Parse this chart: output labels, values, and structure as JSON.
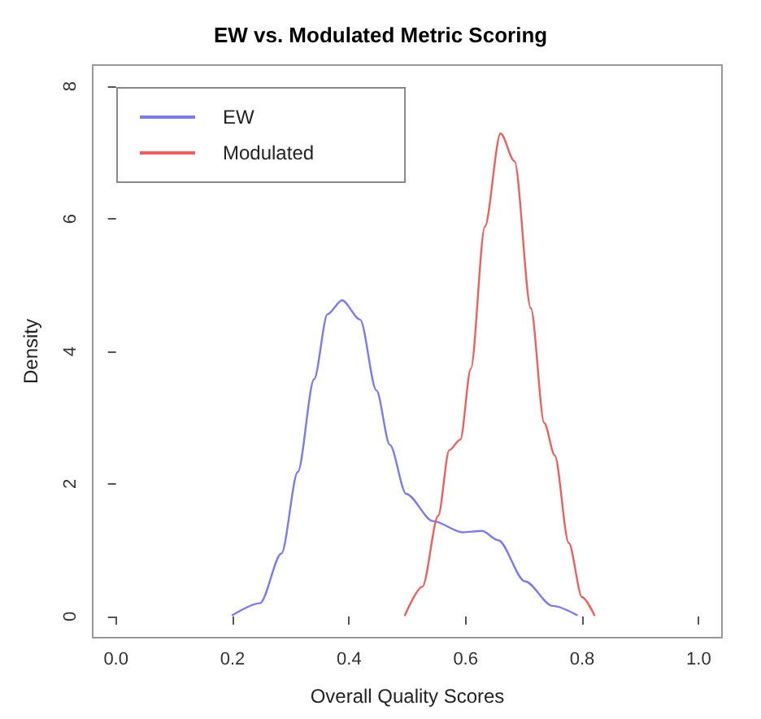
{
  "chart_data": {
    "type": "line",
    "title": "EW vs. Modulated Metric Scoring",
    "xlabel": "Overall Quality Scores",
    "ylabel": "Density",
    "xlim": [
      -0.04,
      1.04
    ],
    "ylim": [
      -0.32,
      8.32
    ],
    "xticks": [
      {
        "value": 0,
        "label": "0.0"
      },
      0.2,
      0.4,
      0.6,
      0.8,
      {
        "value": 1,
        "label": "1.0"
      }
    ],
    "yticks": [
      0,
      2,
      4,
      6,
      8
    ],
    "grid": false,
    "legend": "top left",
    "marker": "none",
    "line_style": "solid",
    "series": [
      {
        "name": "EW",
        "color": "#7b7bea",
        "x": [
          0.2,
          0.247,
          0.284,
          0.312,
          0.34,
          0.363,
          0.388,
          0.419,
          0.447,
          0.47,
          0.498,
          0.544,
          0.595,
          0.628,
          0.656,
          0.702,
          0.749,
          0.791
        ],
        "values": [
          0.02,
          0.2,
          0.95,
          2.18,
          3.58,
          4.56,
          4.77,
          4.48,
          3.41,
          2.59,
          1.85,
          1.44,
          1.27,
          1.29,
          1.15,
          0.53,
          0.16,
          0.02
        ]
      },
      {
        "name": "Modulated",
        "color": "#ec5f5f",
        "x": [
          0.496,
          0.526,
          0.553,
          0.572,
          0.591,
          0.609,
          0.633,
          0.66,
          0.684,
          0.712,
          0.735,
          0.753,
          0.777,
          0.8,
          0.821
        ],
        "values": [
          0.02,
          0.45,
          1.52,
          2.51,
          2.67,
          3.74,
          5.88,
          7.29,
          6.87,
          4.65,
          2.92,
          2.43,
          1.11,
          0.29,
          0.02
        ]
      }
    ]
  }
}
